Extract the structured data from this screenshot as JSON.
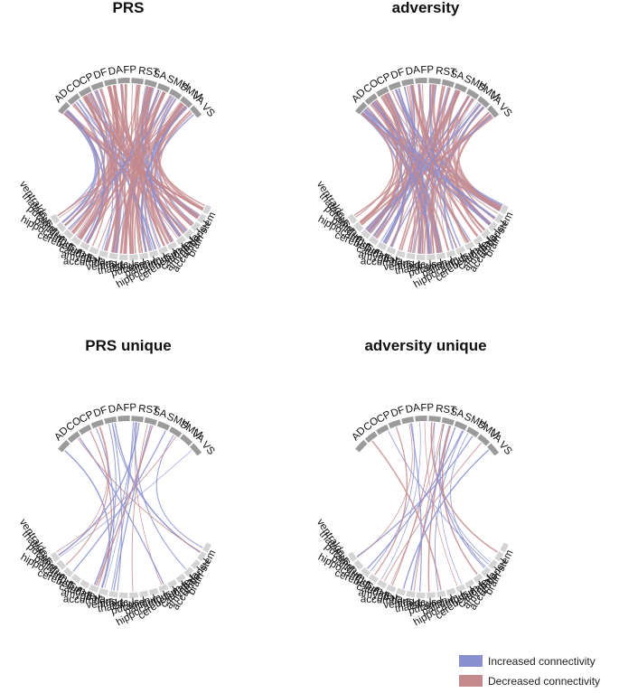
{
  "figure": {
    "legend": [
      {
        "label": "Increased connectivity",
        "color": "#8a8fd0"
      },
      {
        "label": "Decreased connectivity",
        "color": "#c48a8e"
      }
    ],
    "top_nodes": [
      "AD",
      "CO",
      "CP",
      "DF",
      "DA",
      "FP",
      "RST",
      "SA",
      "SMH",
      "SMM",
      "VA",
      "VS"
    ],
    "bottom_nodes": [
      "ventraldc-r",
      "thalamus-r",
      "putamen-r",
      "pallidum-r",
      "hippocampus-r",
      "cerebellum-r",
      "caudate-r",
      "amygdala-r",
      "accumbens-r",
      "ventraldc-l",
      "thalamus-l",
      "putamen-l",
      "pallidum-l",
      "hippocampus-l",
      "cerebellum-l",
      "caudate-l",
      "amygdala-l",
      "accumbens-l",
      "brain-stem"
    ],
    "colors": {
      "top_arc": "#9b9b9b",
      "bottom_arc": "#d4d4d4",
      "increased": "#8a8fd0",
      "decreased": "#c48a8e"
    },
    "panels": [
      {
        "title": "PRS",
        "density": "dense"
      },
      {
        "title": "adversity",
        "density": "dense"
      },
      {
        "title": "PRS unique",
        "density": "sparse"
      },
      {
        "title": "adversity unique",
        "density": "sparse"
      }
    ]
  }
}
